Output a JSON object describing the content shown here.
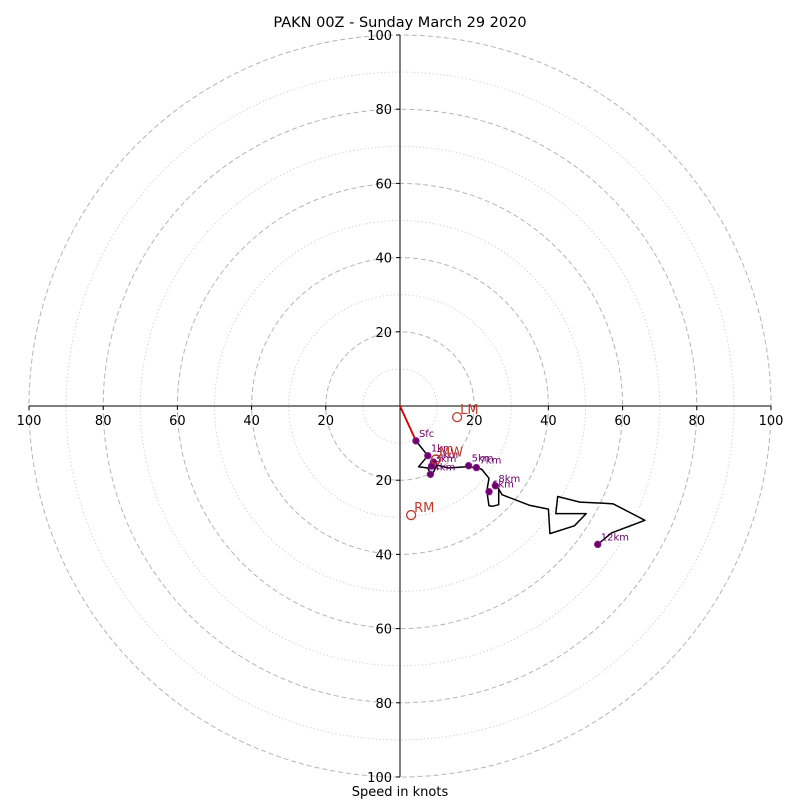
{
  "chart_data": {
    "type": "hodograph",
    "title": "PAKN 00Z - Sunday March 29 2020",
    "xlabel": "Speed in knots",
    "xlim": [
      -100,
      100
    ],
    "ylim": [
      -100,
      100
    ],
    "ring_major": [
      20,
      40,
      60,
      80,
      100
    ],
    "ring_minor": [
      10,
      30,
      50,
      70,
      90
    ],
    "x_ticks": [
      {
        "value": -100,
        "label": "100"
      },
      {
        "value": -80,
        "label": "80"
      },
      {
        "value": -60,
        "label": "60"
      },
      {
        "value": -40,
        "label": "40"
      },
      {
        "value": -20,
        "label": "20"
      },
      {
        "value": 20,
        "label": "20"
      },
      {
        "value": 40,
        "label": "40"
      },
      {
        "value": 60,
        "label": "60"
      },
      {
        "value": 80,
        "label": "80"
      },
      {
        "value": 100,
        "label": "100"
      }
    ],
    "y_ticks": [
      {
        "value": 100,
        "label": "100"
      },
      {
        "value": 80,
        "label": "80"
      },
      {
        "value": 60,
        "label": "60"
      },
      {
        "value": 40,
        "label": "40"
      },
      {
        "value": 20,
        "label": "20"
      },
      {
        "value": -20,
        "label": "20"
      },
      {
        "value": -40,
        "label": "40"
      },
      {
        "value": -60,
        "label": "60"
      },
      {
        "value": -80,
        "label": "80"
      },
      {
        "value": -100,
        "label": "100"
      }
    ],
    "hodograph": [
      [
        0,
        0
      ],
      [
        4.3,
        -9.4
      ],
      [
        7.5,
        -13.4
      ],
      [
        5,
        -16.4
      ],
      [
        7.5,
        -16.7
      ],
      [
        8.5,
        -18.8
      ],
      [
        10,
        -15.9
      ],
      [
        13,
        -16.7
      ],
      [
        18,
        -16.4
      ],
      [
        20,
        -16.6
      ],
      [
        22,
        -17
      ],
      [
        24,
        -19.5
      ],
      [
        23.4,
        -22.9
      ],
      [
        24,
        -26.9
      ],
      [
        25,
        -27
      ],
      [
        26.6,
        -26.6
      ],
      [
        26.6,
        -22.4
      ],
      [
        25.5,
        -20.4
      ],
      [
        27.5,
        -23.9
      ],
      [
        35,
        -26.8
      ],
      [
        40,
        -27.8
      ],
      [
        40.4,
        -34.4
      ],
      [
        47,
        -32.3
      ],
      [
        50.2,
        -29
      ],
      [
        42,
        -29
      ],
      [
        42.5,
        -24.4
      ],
      [
        48.5,
        -25.9
      ],
      [
        55,
        -26.2
      ],
      [
        57.5,
        -26.4
      ],
      [
        66,
        -30.8
      ],
      [
        57,
        -34.2
      ],
      [
        53.3,
        -37.3
      ]
    ],
    "shear_vector": [
      [
        0,
        0
      ],
      [
        4.3,
        -9.4
      ]
    ],
    "levels": [
      {
        "label": "Sfc",
        "u": 4.3,
        "v": -9.4
      },
      {
        "label": "1km",
        "u": 7.5,
        "v": -13.4
      },
      {
        "label": "2km",
        "u": 9,
        "v": -15.1
      },
      {
        "label": "3km",
        "u": 8.5,
        "v": -16.2
      },
      {
        "label": "4km",
        "u": 8.2,
        "v": -18.4
      },
      {
        "label": "5km",
        "u": 18.5,
        "v": -16.1
      },
      {
        "label": "6km",
        "u": 24,
        "v": -23.1
      },
      {
        "label": "7km",
        "u": 20.6,
        "v": -16.6
      },
      {
        "label": "8km",
        "u": 25.7,
        "v": -21.5
      },
      {
        "label": "12km",
        "u": 53.3,
        "v": -37.3
      }
    ],
    "storm_motions": [
      {
        "label": "LM",
        "u": 15.4,
        "v": -3
      },
      {
        "label": "MW",
        "u": 9.7,
        "v": -14.4
      },
      {
        "label": "RM",
        "u": 3,
        "v": -29.4
      }
    ]
  }
}
